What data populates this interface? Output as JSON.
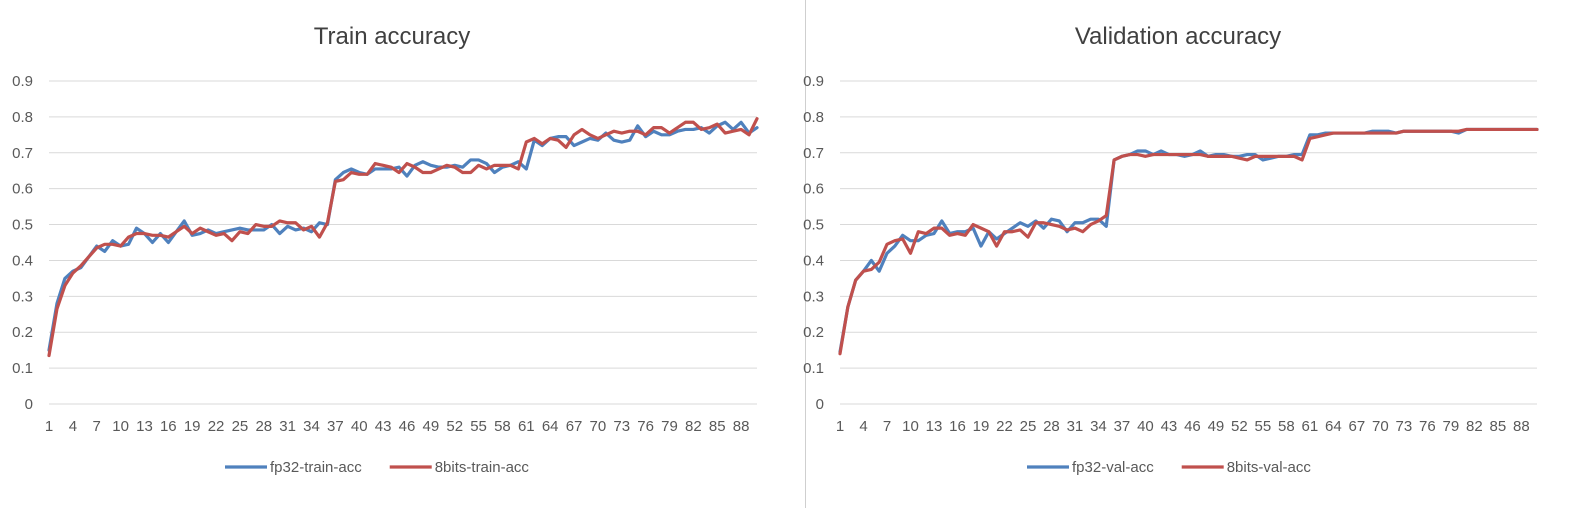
{
  "chart_data": [
    {
      "type": "line",
      "title": "Train accuracy",
      "xlabel": "",
      "ylabel": "",
      "ylim": [
        0,
        0.9
      ],
      "yticks": [
        "0",
        "0.1",
        "0.2",
        "0.3",
        "0.4",
        "0.5",
        "0.6",
        "0.7",
        "0.8",
        "0.9"
      ],
      "x_range": [
        1,
        90
      ],
      "xticks": [
        "1",
        "4",
        "7",
        "10",
        "13",
        "16",
        "19",
        "22",
        "25",
        "28",
        "31",
        "34",
        "37",
        "40",
        "43",
        "46",
        "49",
        "52",
        "55",
        "58",
        "61",
        "64",
        "67",
        "70",
        "73",
        "76",
        "79",
        "82",
        "85",
        "88"
      ],
      "grid": true,
      "legend_position": "bottom",
      "series": [
        {
          "name": "fp32-train-acc",
          "color": "#4f81bd",
          "values": [
            0.15,
            0.28,
            0.35,
            0.37,
            0.38,
            0.41,
            0.44,
            0.425,
            0.455,
            0.44,
            0.445,
            0.49,
            0.475,
            0.45,
            0.475,
            0.45,
            0.48,
            0.51,
            0.47,
            0.475,
            0.485,
            0.475,
            0.48,
            0.485,
            0.49,
            0.485,
            0.485,
            0.485,
            0.5,
            0.475,
            0.495,
            0.485,
            0.49,
            0.48,
            0.505,
            0.5,
            0.625,
            0.645,
            0.655,
            0.645,
            0.64,
            0.655,
            0.655,
            0.655,
            0.66,
            0.635,
            0.665,
            0.675,
            0.665,
            0.66,
            0.66,
            0.665,
            0.66,
            0.68,
            0.68,
            0.67,
            0.645,
            0.66,
            0.665,
            0.675,
            0.655,
            0.735,
            0.72,
            0.74,
            0.745,
            0.745,
            0.72,
            0.73,
            0.74,
            0.735,
            0.755,
            0.735,
            0.73,
            0.735,
            0.775,
            0.745,
            0.76,
            0.75,
            0.75,
            0.76,
            0.765,
            0.765,
            0.77,
            0.755,
            0.775,
            0.785,
            0.765,
            0.785,
            0.755,
            0.77
          ]
        },
        {
          "name": "8bits-train-acc",
          "color": "#c0504d",
          "values": [
            0.135,
            0.265,
            0.33,
            0.365,
            0.385,
            0.41,
            0.435,
            0.445,
            0.445,
            0.44,
            0.465,
            0.475,
            0.475,
            0.47,
            0.47,
            0.465,
            0.48,
            0.495,
            0.475,
            0.49,
            0.48,
            0.47,
            0.475,
            0.455,
            0.48,
            0.475,
            0.5,
            0.495,
            0.495,
            0.51,
            0.505,
            0.505,
            0.485,
            0.495,
            0.465,
            0.505,
            0.62,
            0.625,
            0.645,
            0.64,
            0.64,
            0.67,
            0.665,
            0.66,
            0.645,
            0.67,
            0.66,
            0.645,
            0.645,
            0.655,
            0.665,
            0.66,
            0.645,
            0.645,
            0.665,
            0.655,
            0.665,
            0.665,
            0.665,
            0.655,
            0.73,
            0.74,
            0.725,
            0.74,
            0.735,
            0.715,
            0.75,
            0.765,
            0.75,
            0.74,
            0.75,
            0.76,
            0.755,
            0.76,
            0.76,
            0.75,
            0.77,
            0.77,
            0.755,
            0.77,
            0.785,
            0.785,
            0.765,
            0.77,
            0.78,
            0.755,
            0.76,
            0.765,
            0.75,
            0.795
          ]
        }
      ]
    },
    {
      "type": "line",
      "title": "Validation accuracy",
      "xlabel": "",
      "ylabel": "",
      "ylim": [
        0,
        0.9
      ],
      "yticks": [
        "0",
        "0.1",
        "0.2",
        "0.3",
        "0.4",
        "0.5",
        "0.6",
        "0.7",
        "0.8",
        "0.9"
      ],
      "x_range": [
        1,
        90
      ],
      "xticks": [
        "1",
        "4",
        "7",
        "10",
        "13",
        "16",
        "19",
        "22",
        "25",
        "28",
        "31",
        "34",
        "37",
        "40",
        "43",
        "46",
        "49",
        "52",
        "55",
        "58",
        "61",
        "64",
        "67",
        "70",
        "73",
        "76",
        "79",
        "82",
        "85",
        "88"
      ],
      "grid": true,
      "legend_position": "bottom",
      "series": [
        {
          "name": "fp32-val-acc",
          "color": "#4f81bd",
          "values": [
            0.145,
            0.27,
            0.345,
            0.37,
            0.4,
            0.37,
            0.42,
            0.44,
            0.47,
            0.455,
            0.455,
            0.47,
            0.475,
            0.51,
            0.475,
            0.48,
            0.48,
            0.49,
            0.44,
            0.48,
            0.46,
            0.475,
            0.49,
            0.505,
            0.495,
            0.51,
            0.49,
            0.515,
            0.51,
            0.48,
            0.505,
            0.505,
            0.515,
            0.515,
            0.495,
            0.68,
            0.69,
            0.695,
            0.705,
            0.705,
            0.695,
            0.705,
            0.695,
            0.695,
            0.69,
            0.695,
            0.705,
            0.69,
            0.695,
            0.695,
            0.69,
            0.69,
            0.695,
            0.695,
            0.68,
            0.685,
            0.69,
            0.69,
            0.695,
            0.695,
            0.75,
            0.75,
            0.755,
            0.755,
            0.755,
            0.755,
            0.755,
            0.755,
            0.76,
            0.76,
            0.76,
            0.755,
            0.76,
            0.76,
            0.76,
            0.76,
            0.76,
            0.76,
            0.76,
            0.755,
            0.765,
            0.765,
            0.765,
            0.765,
            0.765,
            0.765,
            0.765,
            0.765,
            0.765,
            0.765
          ]
        },
        {
          "name": "8bits-val-acc",
          "color": "#c0504d",
          "values": [
            0.14,
            0.27,
            0.345,
            0.37,
            0.375,
            0.395,
            0.445,
            0.455,
            0.46,
            0.42,
            0.48,
            0.475,
            0.49,
            0.49,
            0.47,
            0.475,
            0.47,
            0.5,
            0.49,
            0.48,
            0.44,
            0.48,
            0.48,
            0.485,
            0.465,
            0.505,
            0.505,
            0.5,
            0.495,
            0.485,
            0.49,
            0.48,
            0.5,
            0.51,
            0.525,
            0.68,
            0.69,
            0.695,
            0.695,
            0.69,
            0.695,
            0.695,
            0.695,
            0.695,
            0.695,
            0.695,
            0.695,
            0.69,
            0.69,
            0.69,
            0.69,
            0.685,
            0.68,
            0.69,
            0.69,
            0.69,
            0.69,
            0.69,
            0.69,
            0.68,
            0.74,
            0.745,
            0.75,
            0.755,
            0.755,
            0.755,
            0.755,
            0.755,
            0.755,
            0.755,
            0.755,
            0.755,
            0.76,
            0.76,
            0.76,
            0.76,
            0.76,
            0.76,
            0.76,
            0.76,
            0.765,
            0.765,
            0.765,
            0.765,
            0.765,
            0.765,
            0.765,
            0.765,
            0.765,
            0.765
          ]
        }
      ]
    }
  ]
}
